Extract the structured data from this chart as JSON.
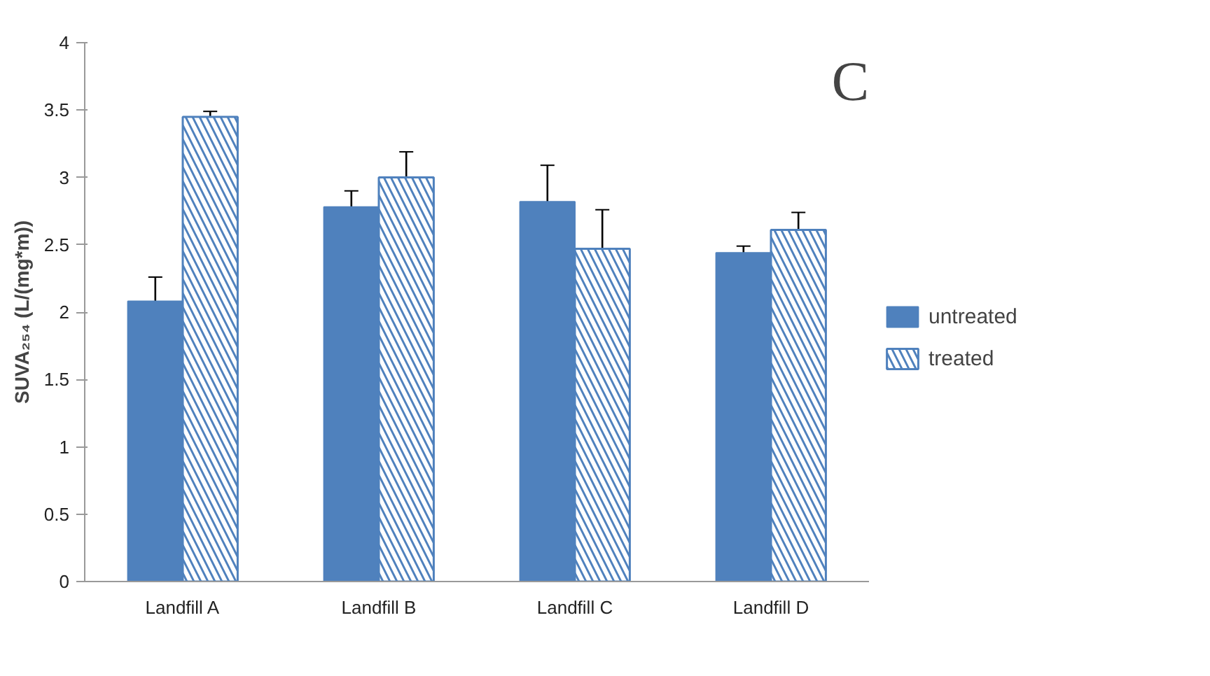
{
  "chart_data": {
    "type": "bar",
    "ylabel": "SUVA₂₅₄ (L/(mg*m))",
    "categories": [
      "Landfill A",
      "Landfill B",
      "Landfill C",
      "Landfill D"
    ],
    "series": [
      {
        "name": "untreated",
        "color": "#4f81bd",
        "values": [
          2.08,
          2.78,
          2.82,
          2.44
        ],
        "errors": [
          0.18,
          0.12,
          0.27,
          0.05
        ]
      },
      {
        "name": "treated",
        "color": "#4f81bd",
        "values": [
          3.45,
          3.0,
          2.47,
          2.61
        ],
        "errors": [
          0.04,
          0.19,
          0.29,
          0.13
        ]
      }
    ],
    "ylim": [
      0,
      4
    ],
    "yticks": [
      0,
      0.5,
      1,
      1.5,
      2,
      2.5,
      3,
      3.5,
      4
    ],
    "grid": false,
    "legend": "right",
    "annotations": [
      "C"
    ]
  }
}
